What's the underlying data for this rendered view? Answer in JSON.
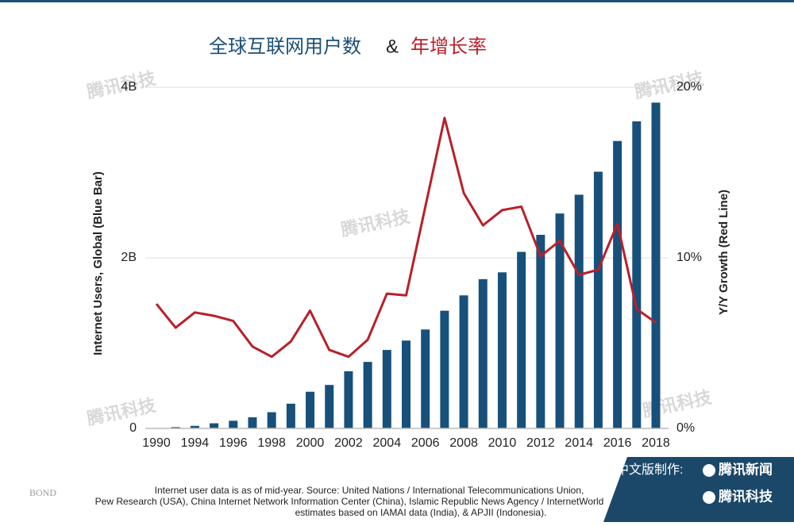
{
  "chart_data": {
    "type": "bar_line",
    "title_parts": [
      "全球互联网用户数",
      "&",
      "年增长率"
    ],
    "ylabel": "Internet Users, Global (Blue Bar)",
    "y2label": "Y/Y Growth (Red Line)",
    "categories": [
      "1990",
      null,
      "1994",
      null,
      "1996",
      null,
      "1998",
      null,
      "2000",
      null,
      "2002",
      null,
      "2004",
      null,
      "2006",
      null,
      "2008",
      null,
      "2010",
      null,
      "2012",
      null,
      "2014",
      null,
      "2016",
      null,
      "2018"
    ],
    "series": [
      {
        "name": "Internet Users, Global",
        "type": "bar",
        "color": "#17507b",
        "values": [
          5000000,
          15000000,
          30000000,
          60000000,
          90000000,
          130000000,
          190000000,
          290000000,
          430000000,
          510000000,
          670000000,
          780000000,
          920000000,
          1030000000,
          1160000000,
          1380000000,
          1560000000,
          1750000000,
          1830000000,
          2070000000,
          2270000000,
          2520000000,
          2740000000,
          3010000000,
          3370000000,
          3600000000,
          3820000000
        ]
      },
      {
        "name": "Y/Y Growth",
        "type": "line",
        "axis": "y2",
        "color": "#b8202a",
        "values": [
          7.3,
          5.9,
          6.8,
          6.6,
          6.3,
          4.8,
          4.2,
          5.1,
          6.9,
          4.6,
          4.2,
          5.2,
          7.9,
          7.8,
          13.0,
          18.2,
          13.8,
          11.9,
          12.8,
          13.0,
          10.1,
          11.0,
          9.0,
          9.3,
          12.0,
          7.0,
          6.2
        ]
      }
    ],
    "ylim": [
      0,
      4000000000
    ],
    "yticks": [
      0,
      {
        "value": 2000000000,
        "label": "2B"
      },
      {
        "value": 4000000000,
        "label": "4B"
      }
    ],
    "y2lim": [
      0,
      20
    ],
    "y2ticks": [
      {
        "value": 0,
        "label": "0%"
      },
      {
        "value": 10,
        "label": "10%"
      },
      {
        "value": 20,
        "label": "20%"
      }
    ],
    "grid": true,
    "footnote": [
      "Internet user data is as of mid-year.  Source: United Nations / International Telecommunications Union,",
      "Pew Research (USA), China Internet Network Information Center (China), Islamic Republic News Agency / InternetWorld",
      "estimates based on IAMAI data (India), & APJII (Indonesia)."
    ],
    "source_logo": "BOND",
    "watermark": "腾讯科技",
    "badge": {
      "label": "中文版制作:",
      "brand1": "腾讯新闻",
      "brand2": "腾讯科技"
    }
  }
}
